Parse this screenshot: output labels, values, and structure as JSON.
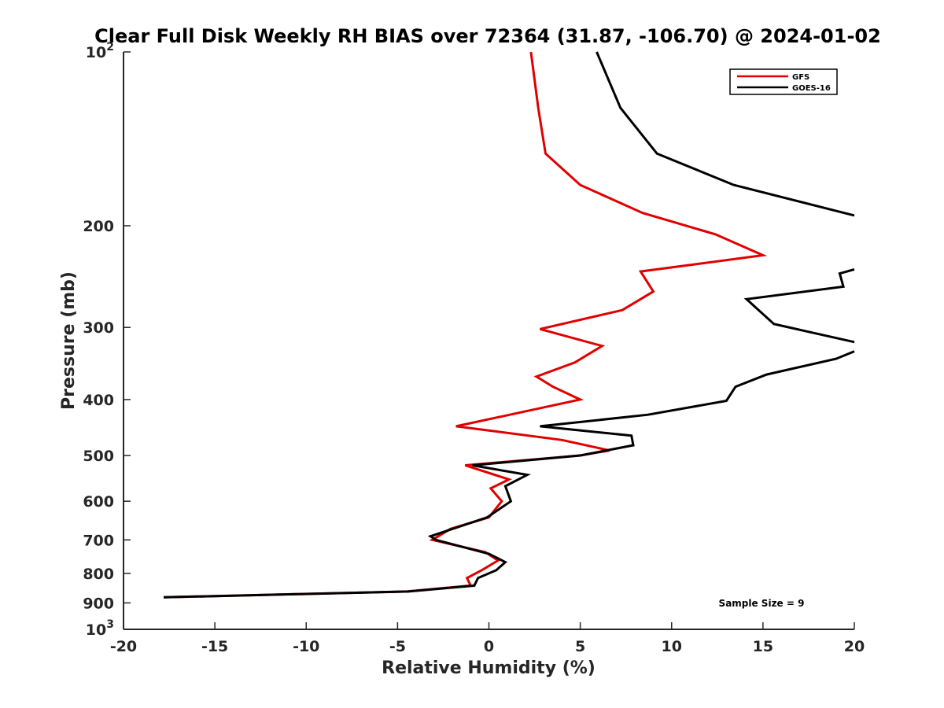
{
  "chart_data": {
    "type": "line",
    "title": "Clear Full Disk Weekly RH BIAS over 72364 (31.87, -106.70) @ 2024-01-02",
    "xlabel": "Relative Humidity (%)",
    "ylabel": "Pressure (mb)",
    "xlim": [
      -20,
      20
    ],
    "ylim": [
      100,
      1000
    ],
    "y_scale": "log",
    "y_reversed": true,
    "x_ticks": [
      "-20",
      "-15",
      "-10",
      "-5",
      "0",
      "5",
      "10",
      "15",
      "20"
    ],
    "y_ticks": [
      {
        "value": 100,
        "base": "10",
        "exp": "2"
      },
      {
        "value": 200,
        "label": "200"
      },
      {
        "value": 300,
        "label": "300"
      },
      {
        "value": 400,
        "label": "400"
      },
      {
        "value": 500,
        "label": "500"
      },
      {
        "value": 600,
        "label": "600"
      },
      {
        "value": 700,
        "label": "700"
      },
      {
        "value": 800,
        "label": "800"
      },
      {
        "value": 900,
        "label": "900"
      },
      {
        "value": 1000,
        "base": "10",
        "exp": "3"
      }
    ],
    "grid": false,
    "legend_position": "top-right",
    "series": [
      {
        "name": "GFS",
        "color": "#e00000",
        "points": [
          [
            2.3,
            100
          ],
          [
            2.7,
            125
          ],
          [
            3.1,
            150
          ],
          [
            5.0,
            170
          ],
          [
            8.4,
            190
          ],
          [
            12.4,
            207
          ],
          [
            15.0,
            225
          ],
          [
            8.3,
            240
          ],
          [
            9.0,
            260
          ],
          [
            7.3,
            280
          ],
          [
            2.8,
            302
          ],
          [
            6.2,
            323
          ],
          [
            4.7,
            345
          ],
          [
            2.6,
            365
          ],
          [
            3.5,
            380
          ],
          [
            5.0,
            400
          ],
          [
            -1.8,
            445
          ],
          [
            4.0,
            470
          ],
          [
            6.6,
            490
          ],
          [
            5.0,
            500
          ],
          [
            -1.3,
            520
          ],
          [
            1.1,
            550
          ],
          [
            0.1,
            570
          ],
          [
            0.7,
            600
          ],
          [
            0.0,
            640
          ],
          [
            -2.1,
            670
          ],
          [
            -3.1,
            700
          ],
          [
            -0.2,
            735
          ],
          [
            0.5,
            760
          ],
          [
            -0.4,
            790
          ],
          [
            -1.2,
            815
          ],
          [
            -1.0,
            840
          ],
          [
            -4.5,
            860
          ],
          [
            -17.8,
            880
          ]
        ]
      },
      {
        "name": "GOES-16",
        "color": "#000000",
        "points": [
          [
            5.9,
            100
          ],
          [
            7.2,
            125
          ],
          [
            9.2,
            150
          ],
          [
            13.4,
            170
          ],
          [
            20.0,
            192
          ],
          [
            null,
            null
          ],
          [
            20.0,
            238
          ],
          [
            19.2,
            242
          ],
          [
            19.4,
            255
          ],
          [
            14.1,
            268
          ],
          [
            15.6,
            296
          ],
          [
            20.0,
            318
          ],
          [
            null,
            null
          ],
          [
            20.0,
            330
          ],
          [
            19.0,
            340
          ],
          [
            15.2,
            362
          ],
          [
            13.5,
            380
          ],
          [
            13.0,
            402
          ],
          [
            8.7,
            425
          ],
          [
            2.8,
            445
          ],
          [
            7.8,
            462
          ],
          [
            7.9,
            480
          ],
          [
            5.0,
            500
          ],
          [
            -0.9,
            520
          ],
          [
            2.1,
            540
          ],
          [
            0.9,
            565
          ],
          [
            1.2,
            600
          ],
          [
            -0.1,
            640
          ],
          [
            -3.2,
            690
          ],
          [
            -2.9,
            700
          ],
          [
            0.0,
            740
          ],
          [
            0.9,
            765
          ],
          [
            0.4,
            790
          ],
          [
            -0.6,
            815
          ],
          [
            -0.8,
            840
          ],
          [
            -4.4,
            860
          ],
          [
            -17.8,
            880
          ]
        ]
      }
    ],
    "annotation": "Sample Size = 9"
  }
}
